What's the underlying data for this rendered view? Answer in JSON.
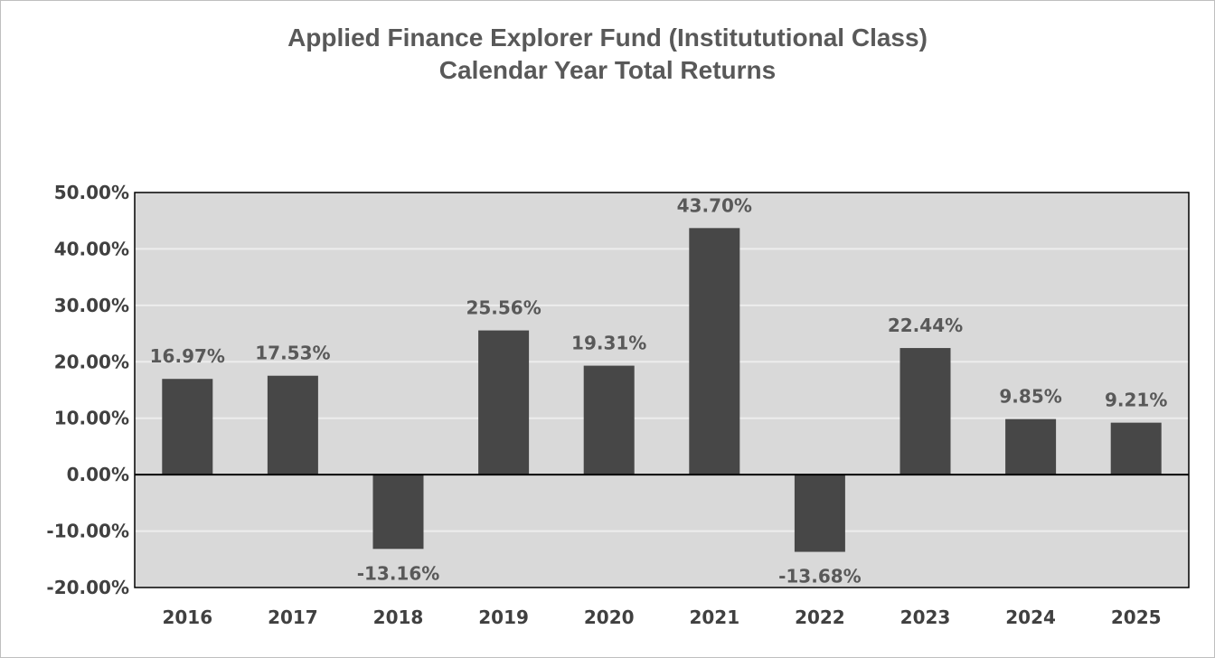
{
  "chart_data": {
    "type": "bar",
    "title": "Applied Finance Explorer Fund (Institututional Class)",
    "subtitle": "Calendar Year Total Returns",
    "xlabel": "",
    "ylabel": "",
    "categories": [
      "2016",
      "2017",
      "2018",
      "2019",
      "2020",
      "2021",
      "2022",
      "2023",
      "2024",
      "2025"
    ],
    "values": [
      16.97,
      17.53,
      -13.16,
      25.56,
      19.31,
      43.7,
      -13.68,
      22.44,
      9.85,
      9.21
    ],
    "data_labels": [
      "16.97%",
      "17.53%",
      "-13.16%",
      "25.56%",
      "19.31%",
      "43.70%",
      "-13.68%",
      "22.44%",
      "9.85%",
      "9.21%"
    ],
    "ylim": [
      -20,
      50
    ],
    "yticks": [
      50,
      40,
      30,
      20,
      10,
      0,
      -10,
      -20
    ],
    "ytick_labels": [
      "50.00%",
      "40.00%",
      "30.00%",
      "20.00%",
      "10.00%",
      "0.00%",
      "-10.00%",
      "-20.00%"
    ],
    "grid": true,
    "legend": "none",
    "colors": {
      "bar": "#474747",
      "plot_background": "#d9d9d9",
      "gridline": "#ededed",
      "title": "#595959",
      "axis_text": "#404040"
    }
  }
}
